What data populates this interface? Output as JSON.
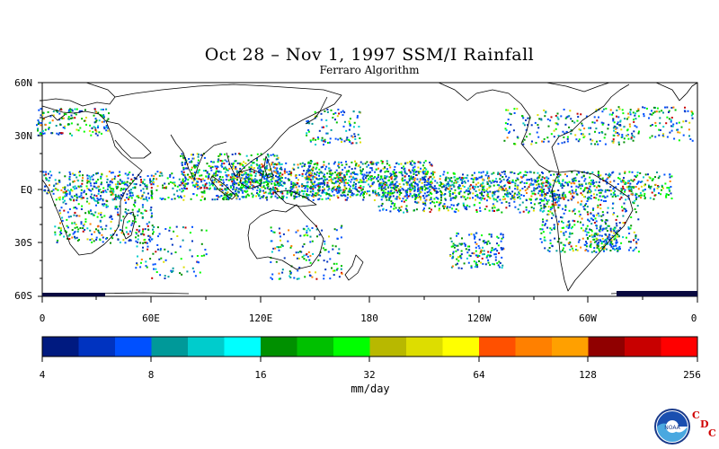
{
  "title": "Oct 28 – Nov 1, 1997 SSM/I Rainfall",
  "subtitle": "Ferraro Algorithm",
  "map": {
    "projection": "equirectangular",
    "lon_range": [
      0,
      360
    ],
    "lat_range": [
      -60,
      60
    ],
    "y_ticks": [
      "60N",
      "30N",
      "EQ",
      "30S",
      "60S"
    ],
    "x_ticks": [
      "0",
      "60E",
      "120E",
      "180",
      "120W",
      "60W",
      "0"
    ]
  },
  "colorbar": {
    "units": "mm/day",
    "tick_labels": [
      "4",
      "8",
      "16",
      "32",
      "64",
      "128",
      "256"
    ],
    "colors": [
      "#001a80",
      "#0033c0",
      "#0050ff",
      "#009999",
      "#00cccc",
      "#00ffff",
      "#009000",
      "#00c000",
      "#00ff00",
      "#b8b800",
      "#dddd00",
      "#ffff00",
      "#ff5000",
      "#ff8000",
      "#ffa000",
      "#900000",
      "#c80000",
      "#ff0000"
    ]
  },
  "logo": {
    "name": "NOAA",
    "letters": [
      "C",
      "D",
      "C"
    ]
  }
}
